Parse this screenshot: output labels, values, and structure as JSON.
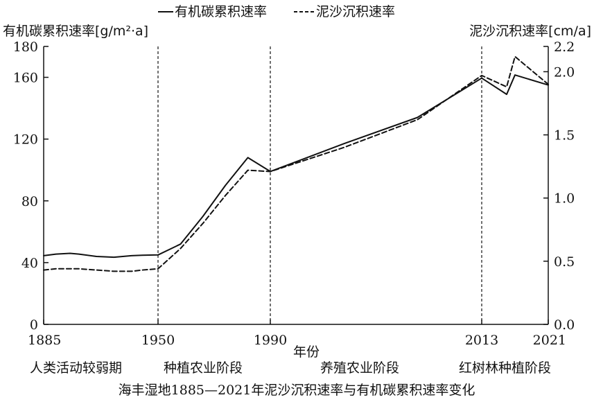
{
  "legend": {
    "organic_label": "有机碳累积速率",
    "sediment_label": "泥沙沉积速率"
  },
  "left_axis_title": "有机碳累积速率[g/m²·a]",
  "right_axis_title": "泥沙沉积速率[cm/a]",
  "xlabel": "年份",
  "stages": [
    "人类活动较弱期",
    "种植农业阶段",
    "养殖农业阶段",
    "红树林种植阶段"
  ],
  "caption": "海丰湿地1885—2021年泥沙沉积速率与有机碳累积速率变化",
  "chart_data": {
    "type": "line",
    "x_ticks": [
      1885,
      1950,
      1990,
      2013,
      2021
    ],
    "xlim": [
      1885,
      2021
    ],
    "ylim_left": [
      0,
      180
    ],
    "ylim_right": [
      0,
      2.2
    ],
    "y_ticks_left": [
      0,
      40,
      80,
      120,
      160,
      180
    ],
    "y_ticks_right": [
      "0.0",
      "0.5",
      "1.0",
      "1.5",
      "2.0",
      "2.2"
    ],
    "vertical_markers": [
      1950,
      1990,
      2013
    ],
    "series": [
      {
        "name": "有机碳累积速率",
        "axis": "left",
        "style": "solid",
        "x": [
          1885,
          1892,
          1900,
          1905,
          1915,
          1925,
          1935,
          1941,
          1950,
          1958,
          1966,
          1974,
          1982,
          1990,
          1998,
          2006,
          2016,
          2013,
          2017,
          2021
        ],
        "y": [
          44.5,
          45.5,
          46,
          45.5,
          44,
          43.5,
          44.5,
          44.8,
          45,
          52,
          70,
          90,
          108,
          99,
          117,
          134,
          149,
          159.5,
          161.5,
          155
        ]
      },
      {
        "name": "泥沙沉积速率",
        "axis": "right",
        "style": "dashed",
        "x": [
          1885,
          1892,
          1900,
          1905,
          1915,
          1925,
          1935,
          1941,
          1950,
          1958,
          1966,
          1974,
          1982,
          1990,
          1998,
          2006,
          2016,
          2013,
          2017,
          2021
        ],
        "y": [
          0.43,
          0.44,
          0.44,
          0.44,
          0.43,
          0.42,
          0.42,
          0.43,
          0.44,
          0.6,
          0.8,
          1.02,
          1.22,
          1.21,
          1.4,
          1.62,
          1.88,
          1.97,
          2.12,
          1.9
        ]
      }
    ]
  }
}
